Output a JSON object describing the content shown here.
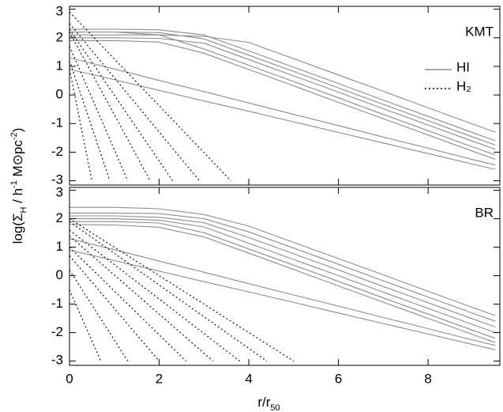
{
  "chart_data": {
    "type": "line",
    "xlabel": [
      {
        "text": "r/r"
      },
      {
        "text": "50",
        "shift": "sub"
      }
    ],
    "ylabel": [
      {
        "text": "log(Σ"
      },
      {
        "text": "H",
        "shift": "sub"
      },
      {
        "text": " / h"
      },
      {
        "text": "-1",
        "shift": "sup"
      },
      {
        "text": " M⊙pc"
      },
      {
        "text": "-2",
        "shift": "sup"
      },
      {
        "text": ")"
      }
    ],
    "xlim": [
      0,
      9.6
    ],
    "xticks": [
      0,
      2,
      4,
      6,
      8
    ],
    "panels": [
      {
        "label": "KMT",
        "ylim": [
          -3.15,
          3.1
        ],
        "yticks": [
          -3,
          -2,
          -1,
          0,
          1,
          2,
          3
        ],
        "series": [
          {
            "name": "HI",
            "color": "#8c8c8c",
            "dash": false,
            "lines": [
              {
                "x": [
                  0,
                  1,
                  2,
                  3,
                  4,
                  5,
                  6,
                  7,
                  8,
                  9,
                  9.5
                ],
                "values": [
                  2.1,
                  2.1,
                  2.1,
                  2.05,
                  1.84,
                  1.27,
                  0.7,
                  0.13,
                  -0.45,
                  -1.02,
                  -1.3
                ]
              },
              {
                "x": [
                  0,
                  1,
                  2,
                  3,
                  4,
                  5,
                  6,
                  7,
                  8,
                  9,
                  9.5
                ],
                "values": [
                  2.3,
                  2.3,
                  2.28,
                  2.1,
                  1.54,
                  0.97,
                  0.4,
                  -0.18,
                  -0.75,
                  -1.32,
                  -1.6
                ]
              },
              {
                "x": [
                  0,
                  1,
                  2,
                  3,
                  4,
                  5,
                  6,
                  7,
                  8,
                  9,
                  9.5
                ],
                "values": [
                  2.2,
                  2.2,
                  2.18,
                  1.96,
                  1.39,
                  0.82,
                  0.25,
                  -0.33,
                  -0.9,
                  -1.47,
                  -1.75
                ]
              },
              {
                "x": [
                  0,
                  1,
                  2,
                  3,
                  4,
                  5,
                  6,
                  7,
                  8,
                  9,
                  9.5
                ],
                "values": [
                  2.0,
                  2.0,
                  1.98,
                  1.81,
                  1.24,
                  0.67,
                  0.1,
                  -0.48,
                  -1.05,
                  -1.62,
                  -1.9
                ]
              },
              {
                "x": [
                  0,
                  1,
                  2,
                  3,
                  4,
                  5,
                  6,
                  7,
                  8,
                  9,
                  9.5
                ],
                "values": [
                  2.2,
                  2.2,
                  2.1,
                  1.61,
                  1.04,
                  0.47,
                  -0.1,
                  -0.68,
                  -1.25,
                  -1.82,
                  -2.1
                ]
              },
              {
                "x": [
                  0,
                  1,
                  2,
                  3,
                  4,
                  5,
                  6,
                  7,
                  8,
                  9,
                  9.5
                ],
                "values": [
                  1.9,
                  1.9,
                  1.85,
                  1.46,
                  0.89,
                  0.32,
                  -0.26,
                  -0.83,
                  -1.4,
                  -1.97,
                  -2.25
                ]
              },
              {
                "x": [
                  0,
                  1,
                  2,
                  3,
                  4,
                  5,
                  6,
                  7,
                  8,
                  9,
                  9.5
                ],
                "values": [
                  1.3,
                  0.91,
                  0.51,
                  0.12,
                  -0.28,
                  -0.68,
                  -1.07,
                  -1.47,
                  -1.86,
                  -2.26,
                  -2.45
                ]
              },
              {
                "x": [
                  0,
                  1,
                  2,
                  3,
                  4,
                  5,
                  6,
                  7,
                  8,
                  9,
                  9.5
                ],
                "values": [
                  0.9,
                  0.53,
                  0.16,
                  -0.21,
                  -0.57,
                  -0.94,
                  -1.31,
                  -1.68,
                  -2.05,
                  -2.42,
                  -2.6
                ]
              }
            ]
          },
          {
            "name": "H₂",
            "color": "#000000",
            "dash": true,
            "lines": [
              {
                "x": [
                  0,
                  3.6
                ],
                "values": [
                  2.9,
                  -3
                ]
              },
              {
                "x": [
                  0,
                  2.9
                ],
                "values": [
                  2.5,
                  -3
                ]
              },
              {
                "x": [
                  0,
                  2.3
                ],
                "values": [
                  2.3,
                  -3
                ]
              },
              {
                "x": [
                  0,
                  1.8
                ],
                "values": [
                  2.2,
                  -3
                ]
              },
              {
                "x": [
                  0,
                  1.3
                ],
                "values": [
                  1.7,
                  -3
                ]
              },
              {
                "x": [
                  0,
                  0.9
                ],
                "values": [
                  1.2,
                  -3
                ]
              },
              {
                "x": [
                  0,
                  0.5
                ],
                "values": [
                  0.9,
                  -3
                ]
              }
            ]
          }
        ]
      },
      {
        "label": "BR",
        "ylim": [
          -3.15,
          3.1
        ],
        "yticks": [
          -3,
          -2,
          -1,
          0,
          1,
          2,
          3
        ],
        "series": [
          {
            "color": "#8c8c8c",
            "dash": false,
            "lines": [
              {
                "x": [
                  0,
                  1,
                  2,
                  3,
                  4,
                  5,
                  6,
                  7,
                  8,
                  9,
                  9.5
                ],
                "values": [
                  2.4,
                  2.4,
                  2.35,
                  2.15,
                  1.74,
                  1.17,
                  0.6,
                  0.03,
                  -0.55,
                  -1.12,
                  -1.4
                ]
              },
              {
                "x": [
                  0,
                  1,
                  2,
                  3,
                  4,
                  5,
                  6,
                  7,
                  8,
                  9,
                  9.5
                ],
                "values": [
                  2.2,
                  2.2,
                  2.18,
                  2.0,
                  1.54,
                  0.97,
                  0.4,
                  -0.18,
                  -0.75,
                  -1.32,
                  -1.6
                ]
              },
              {
                "x": [
                  0,
                  1,
                  2,
                  3,
                  4,
                  5,
                  6,
                  7,
                  8,
                  9,
                  9.5
                ],
                "values": [
                  2.1,
                  2.1,
                  2.05,
                  1.86,
                  1.34,
                  0.77,
                  0.2,
                  -0.38,
                  -0.95,
                  -1.52,
                  -1.8
                ]
              },
              {
                "x": [
                  0,
                  1,
                  2,
                  3,
                  4,
                  5,
                  6,
                  7,
                  8,
                  9,
                  9.5
                ],
                "values": [
                  2.0,
                  2.0,
                  1.95,
                  1.71,
                  1.14,
                  0.57,
                  0.0,
                  -0.58,
                  -1.15,
                  -1.72,
                  -2.0
                ]
              },
              {
                "x": [
                  0,
                  1,
                  2,
                  3,
                  4,
                  5,
                  6,
                  7,
                  8,
                  9,
                  9.5
                ],
                "values": [
                  1.9,
                  1.9,
                  1.85,
                  1.51,
                  0.94,
                  0.37,
                  -0.2,
                  -0.78,
                  -1.35,
                  -1.92,
                  -2.2
                ]
              },
              {
                "x": [
                  0,
                  1,
                  2,
                  3,
                  4,
                  5,
                  6,
                  7,
                  8,
                  9,
                  9.5
                ],
                "values": [
                  1.8,
                  1.78,
                  1.7,
                  1.36,
                  0.79,
                  0.22,
                  -0.36,
                  -0.93,
                  -1.5,
                  -2.07,
                  -2.35
                ]
              },
              {
                "x": [
                  0,
                  1,
                  2,
                  3,
                  4,
                  5,
                  6,
                  7,
                  8,
                  9,
                  9.5
                ],
                "values": [
                  1.3,
                  0.91,
                  0.51,
                  0.12,
                  -0.28,
                  -0.68,
                  -1.07,
                  -1.47,
                  -1.86,
                  -2.26,
                  -2.45
                ]
              },
              {
                "x": [
                  0,
                  1,
                  2,
                  3,
                  4,
                  5,
                  6,
                  7,
                  8,
                  9,
                  9.5
                ],
                "values": [
                  0.9,
                  0.53,
                  0.16,
                  -0.21,
                  -0.57,
                  -0.94,
                  -1.31,
                  -1.68,
                  -2.05,
                  -2.42,
                  -2.6
                ]
              }
            ]
          },
          {
            "color": "#000000",
            "dash": true,
            "lines": [
              {
                "x": [
                  0,
                  5.0
                ],
                "values": [
                  2.0,
                  -3
                ]
              },
              {
                "x": [
                  0,
                  4.4
                ],
                "values": [
                  1.9,
                  -3
                ]
              },
              {
                "x": [
                  0,
                  3.8
                ],
                "values": [
                  1.6,
                  -3
                ]
              },
              {
                "x": [
                  0,
                  3.2
                ],
                "values": [
                  1.4,
                  -3
                ]
              },
              {
                "x": [
                  0,
                  2.6
                ],
                "values": [
                  1.0,
                  -3
                ]
              },
              {
                "x": [
                  0,
                  2.0
                ],
                "values": [
                  0.7,
                  -3
                ]
              },
              {
                "x": [
                  0,
                  1.3
                ],
                "values": [
                  0.2,
                  -3
                ]
              },
              {
                "x": [
                  0,
                  0.7
                ],
                "values": [
                  -0.5,
                  -3
                ]
              }
            ]
          }
        ]
      }
    ]
  }
}
